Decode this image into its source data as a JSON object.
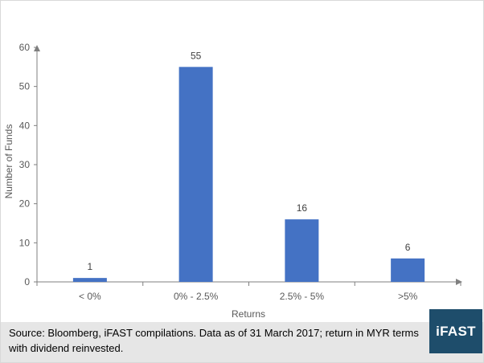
{
  "chart_data": {
    "type": "bar",
    "categories": [
      "< 0%",
      "0% - 2.5%",
      "2.5% - 5%",
      ">5%"
    ],
    "values": [
      1,
      55,
      16,
      6
    ],
    "data_labels": [
      "1",
      "55",
      "16",
      "6"
    ],
    "xlabel": "Returns",
    "ylabel": "Number of Funds",
    "ylim": [
      0,
      60
    ],
    "yticks": [
      0,
      10,
      20,
      30,
      40,
      50,
      60
    ],
    "grid": false,
    "legend": "none",
    "bar_color": "#4472c4"
  },
  "footer": {
    "source_text": "Source: Bloomberg, iFAST compilations. Data as of 31 March 2017;  return in MYR terms with dividend reinvested.",
    "logo_text": "iFAST",
    "logo_color": "#1e4d6b"
  }
}
